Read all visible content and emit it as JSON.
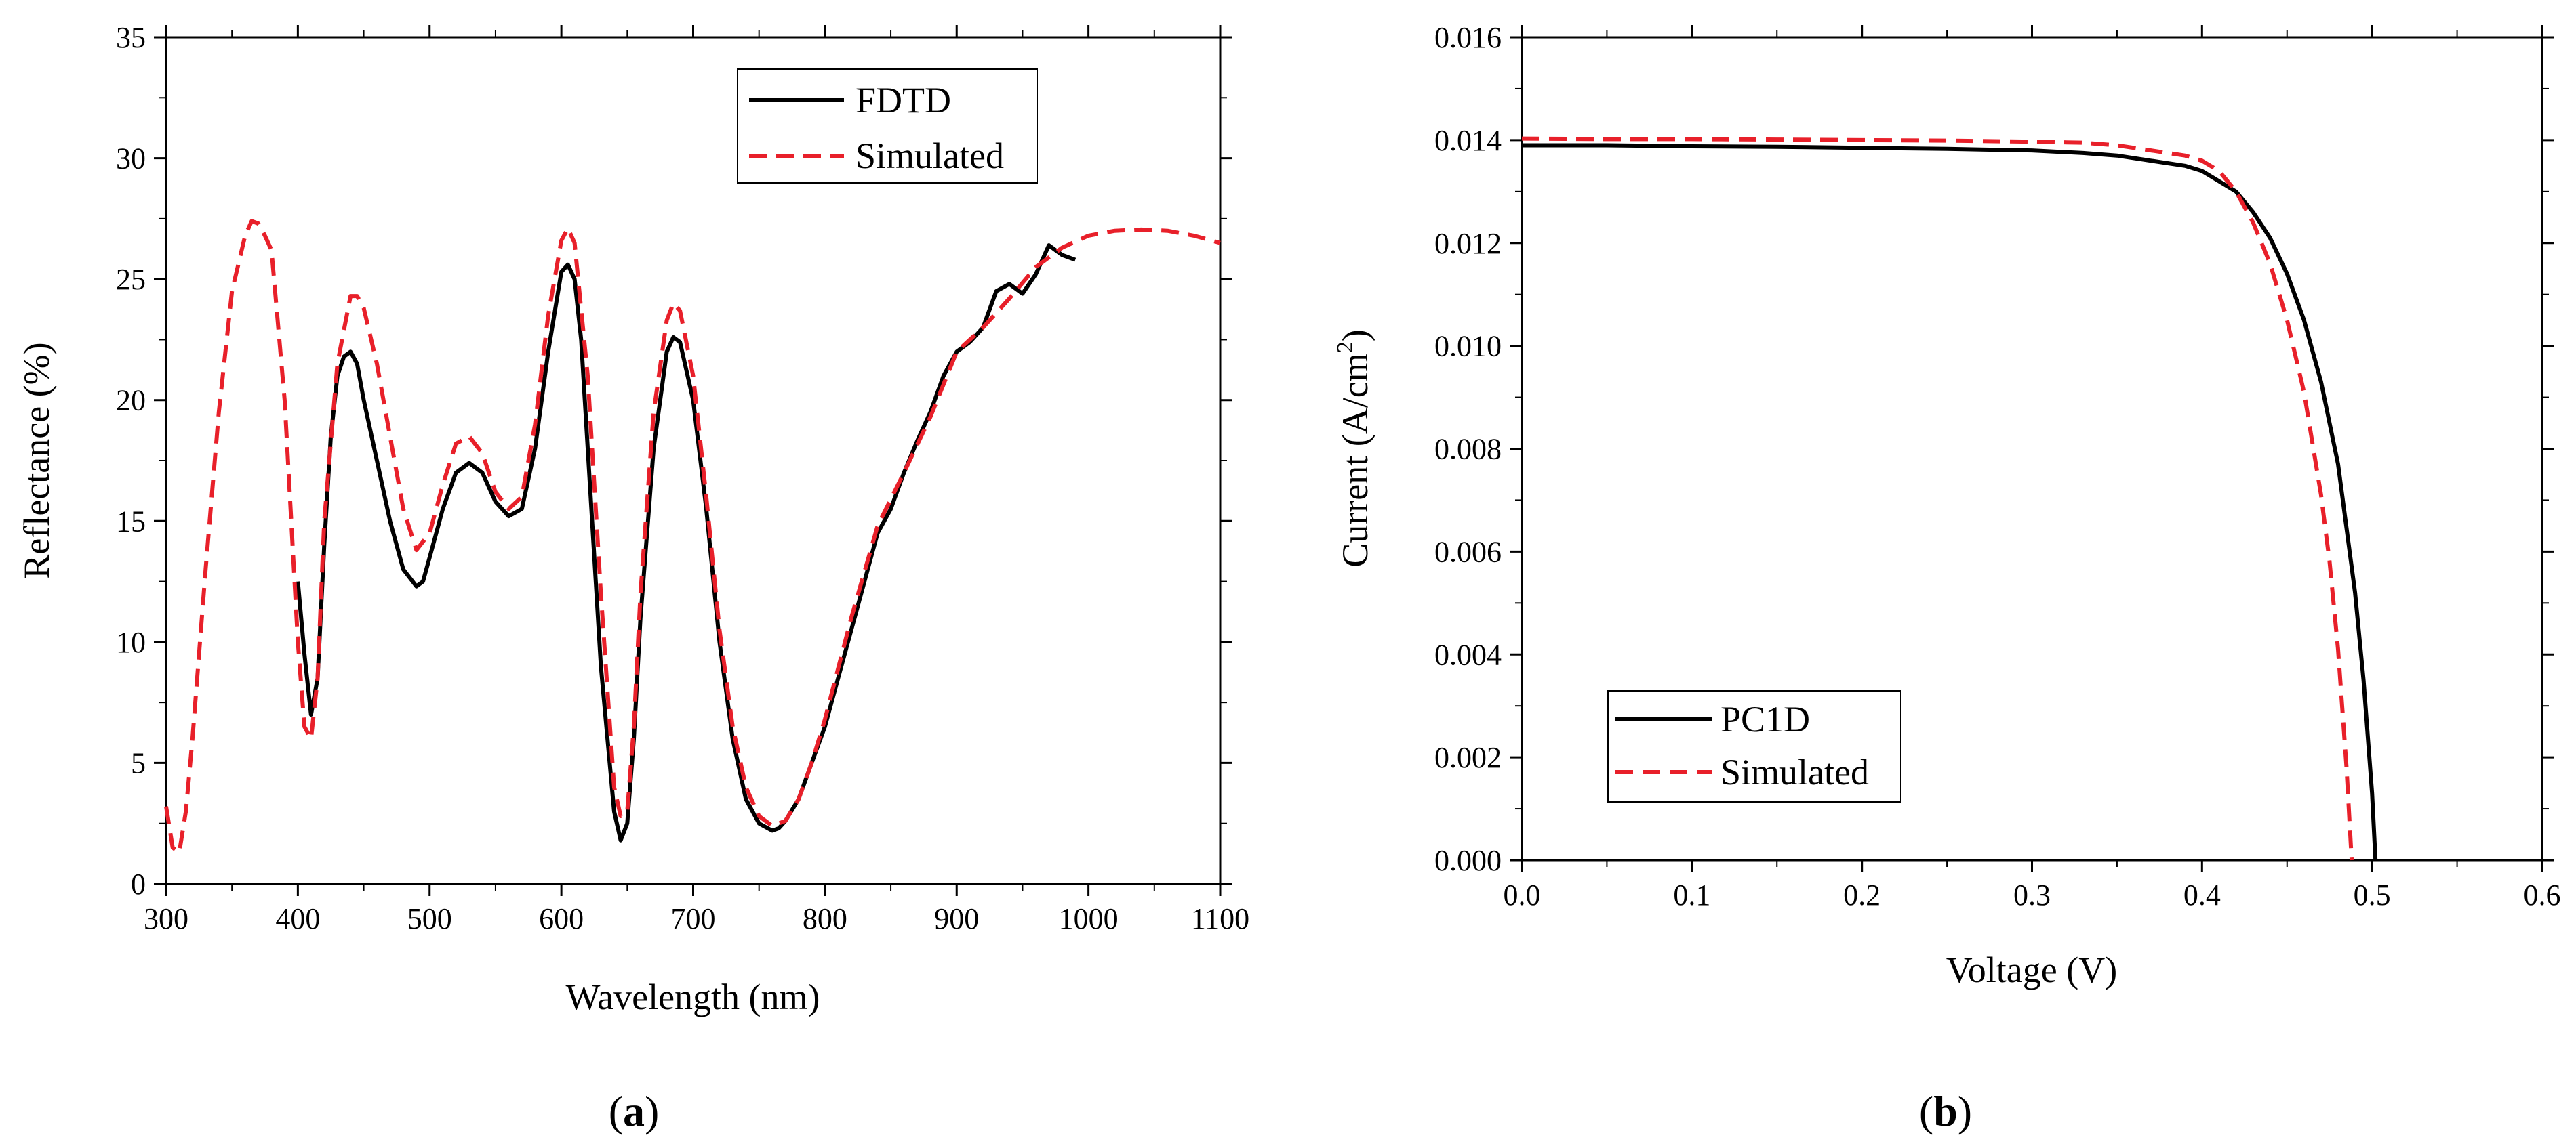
{
  "chart_data": [
    {
      "type": "line",
      "panel": "(a)",
      "xlabel": "Wavelength (nm)",
      "ylabel": "Reflectance (%)",
      "xlim": [
        300,
        1100
      ],
      "ylim": [
        0,
        35
      ],
      "xticks": [
        300,
        400,
        500,
        600,
        700,
        800,
        900,
        1000,
        1100
      ],
      "yticks": [
        0,
        5,
        10,
        15,
        20,
        25,
        30,
        35
      ],
      "legend_position": "top-right",
      "series": [
        {
          "name": "FDTD",
          "style": "solid",
          "color": "#000000",
          "x": [
            400,
            405,
            410,
            415,
            420,
            425,
            430,
            435,
            440,
            445,
            450,
            460,
            470,
            480,
            490,
            495,
            500,
            510,
            520,
            530,
            540,
            550,
            560,
            570,
            580,
            590,
            600,
            605,
            610,
            615,
            620,
            630,
            640,
            645,
            650,
            655,
            660,
            670,
            680,
            685,
            690,
            700,
            710,
            720,
            730,
            740,
            750,
            760,
            765,
            770,
            780,
            790,
            800,
            810,
            820,
            830,
            840,
            850,
            860,
            870,
            880,
            890,
            900,
            910,
            920,
            930,
            940,
            950,
            960,
            970,
            975,
            980,
            990
          ],
          "y": [
            12.5,
            9.5,
            7.0,
            8.5,
            14.0,
            18.5,
            21.0,
            21.8,
            22.0,
            21.5,
            20.0,
            17.5,
            15.0,
            13.0,
            12.3,
            12.5,
            13.5,
            15.5,
            17.0,
            17.4,
            17.0,
            15.8,
            15.2,
            15.5,
            18.0,
            22.0,
            25.3,
            25.6,
            25.0,
            22.5,
            18.0,
            9.0,
            3.0,
            1.8,
            2.5,
            6.0,
            11.0,
            18.0,
            22.0,
            22.6,
            22.4,
            20.0,
            15.5,
            10.0,
            6.0,
            3.5,
            2.5,
            2.2,
            2.3,
            2.6,
            3.5,
            5.0,
            6.5,
            8.5,
            10.5,
            12.5,
            14.5,
            15.5,
            17.0,
            18.3,
            19.5,
            21.0,
            22.0,
            22.4,
            23.0,
            24.5,
            24.8,
            24.4,
            25.2,
            26.4,
            26.2,
            26.0,
            25.8
          ]
        },
        {
          "name": "Simulated",
          "style": "dashed",
          "color": "#e8202a",
          "x": [
            300,
            305,
            310,
            315,
            320,
            330,
            340,
            350,
            360,
            365,
            370,
            375,
            380,
            390,
            400,
            405,
            410,
            415,
            420,
            430,
            440,
            445,
            450,
            460,
            470,
            480,
            490,
            500,
            510,
            520,
            530,
            540,
            550,
            560,
            570,
            580,
            590,
            600,
            605,
            610,
            620,
            630,
            640,
            645,
            650,
            655,
            660,
            670,
            680,
            685,
            690,
            700,
            710,
            720,
            730,
            740,
            750,
            760,
            770,
            780,
            790,
            800,
            820,
            840,
            860,
            880,
            900,
            920,
            940,
            960,
            980,
            1000,
            1020,
            1040,
            1060,
            1080,
            1100
          ],
          "y": [
            3.2,
            1.5,
            1.3,
            3.0,
            6.0,
            13.0,
            19.5,
            24.5,
            26.8,
            27.4,
            27.3,
            26.8,
            26.2,
            20.0,
            10.0,
            6.5,
            6.0,
            8.5,
            15.0,
            21.5,
            24.3,
            24.3,
            23.8,
            21.5,
            18.5,
            15.5,
            13.8,
            14.5,
            16.5,
            18.2,
            18.5,
            17.8,
            16.2,
            15.5,
            16.0,
            19.0,
            23.5,
            26.6,
            27.1,
            26.5,
            21.0,
            12.0,
            4.0,
            2.8,
            3.0,
            6.5,
            12.0,
            19.5,
            23.3,
            24.0,
            23.7,
            21.0,
            16.0,
            10.5,
            6.5,
            4.0,
            2.8,
            2.4,
            2.6,
            3.5,
            5.0,
            6.8,
            11.0,
            14.8,
            17.0,
            19.3,
            22.0,
            23.0,
            24.2,
            25.5,
            26.3,
            26.8,
            27.0,
            27.05,
            27.0,
            26.8,
            26.5
          ]
        }
      ]
    },
    {
      "type": "line",
      "panel": "(b)",
      "xlabel": "Voltage (V)",
      "ylabel": "Current (A/cm2)",
      "ylabel_main": "Current (A/cm",
      "ylabel_sup": "2",
      "ylabel_end": ")",
      "xlim": [
        0.0,
        0.6
      ],
      "ylim": [
        0.0,
        0.016
      ],
      "xticks": [
        "0.0",
        "0.1",
        "0.2",
        "0.3",
        "0.4",
        "0.5",
        "0.6"
      ],
      "yticks": [
        "0.000",
        "0.002",
        "0.004",
        "0.006",
        "0.008",
        "0.010",
        "0.012",
        "0.014",
        "0.016"
      ],
      "legend_position": "bottom-left",
      "series": [
        {
          "name": "PC1D",
          "style": "solid",
          "color": "#000000",
          "x": [
            0.0,
            0.05,
            0.1,
            0.15,
            0.2,
            0.25,
            0.3,
            0.33,
            0.35,
            0.37,
            0.39,
            0.4,
            0.41,
            0.42,
            0.43,
            0.44,
            0.45,
            0.46,
            0.47,
            0.48,
            0.49,
            0.495,
            0.5,
            0.502
          ],
          "y": [
            0.0139,
            0.0139,
            0.01388,
            0.01387,
            0.01385,
            0.01383,
            0.0138,
            0.01375,
            0.0137,
            0.0136,
            0.0135,
            0.0134,
            0.0132,
            0.013,
            0.0126,
            0.0121,
            0.0114,
            0.0105,
            0.0093,
            0.0077,
            0.0052,
            0.0035,
            0.0013,
            0.0
          ]
        },
        {
          "name": "Simulated",
          "style": "dashed",
          "color": "#e8202a",
          "x": [
            0.0,
            0.05,
            0.1,
            0.15,
            0.2,
            0.25,
            0.3,
            0.33,
            0.35,
            0.37,
            0.39,
            0.4,
            0.41,
            0.42,
            0.43,
            0.44,
            0.45,
            0.46,
            0.47,
            0.475,
            0.48,
            0.485,
            0.488
          ],
          "y": [
            0.01403,
            0.01402,
            0.01402,
            0.01401,
            0.014,
            0.01399,
            0.01397,
            0.01395,
            0.0139,
            0.0138,
            0.0137,
            0.0136,
            0.0134,
            0.013,
            0.0124,
            0.0116,
            0.0105,
            0.0091,
            0.0071,
            0.0058,
            0.0041,
            0.0018,
            0.0
          ]
        }
      ]
    }
  ]
}
